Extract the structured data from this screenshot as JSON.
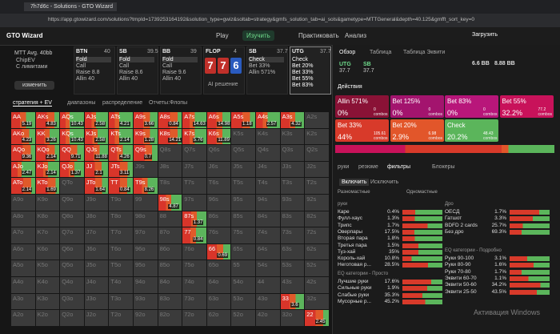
{
  "browser": {
    "tab": "7h7d6c - Solutions - GTO Wizard",
    "url": "https://app.gtowizard.com/solutions?tmpId=1739253164192&solution_type=gwiz&soltab=strategy&gmfs_solution_tab=ai_sols&gametype=MTTGeneral&depth=40.125&gmfft_sort_key=0"
  },
  "header": {
    "logo": "GTO Wizard",
    "nav": [
      "Play",
      "Изучить",
      "Практиковать",
      "Анализ"
    ],
    "upload": "Загрузить"
  },
  "setup": {
    "format": "MTT",
    "stack": "Avg. 40bb",
    "options": [
      "ChipEV",
      "С лимитами"
    ],
    "button": "изменить"
  },
  "actions": [
    {
      "pos": "BTN",
      "stack": "40",
      "items": [
        "Fold",
        "Call",
        "Raise 8.8",
        "Allin 40"
      ]
    },
    {
      "pos": "SB",
      "stack": "39.5",
      "items": [
        "Fold",
        "Call",
        "Raise 8.6",
        "Allin 40"
      ]
    },
    {
      "pos": "BB",
      "stack": "39",
      "items": [
        "Fold",
        "Call",
        "Raise 9.6",
        "Allin 40"
      ]
    },
    {
      "pos": "FLOP",
      "stack": "4",
      "cards": [
        "7",
        "7",
        "6"
      ],
      "note": "AI решение"
    },
    {
      "pos": "SB",
      "stack": "37.7",
      "items": [
        "Check",
        "Bet 33%",
        "Allin 571%"
      ]
    },
    {
      "pos": "UTG",
      "stack": "37.7",
      "items": [
        "Check",
        "Bet 20%",
        "Bet 33%",
        "Bet 55%",
        "Bet 83%"
      ]
    }
  ],
  "tabs": [
    "стратегия + EV",
    "диапазоны",
    "распределение",
    "Отчеты:Флопы"
  ],
  "grid": {
    "rows": [
      [
        "AA",
        "AKs",
        "AQs",
        "AJs",
        "ATs",
        "A9s",
        "A8s",
        "A7s",
        "A6s",
        "A5s",
        "A4s",
        "A3s",
        "A2s"
      ],
      [
        "AKo",
        "KK",
        "KQs",
        "KJs",
        "KTs",
        "K9s",
        "K8s",
        "K7s",
        "K6s",
        "K5s",
        "K4s",
        "K3s",
        "K2s"
      ],
      [
        "AQo",
        "KQo",
        "QQ",
        "QJs",
        "QTs",
        "Q9s",
        "Q8s",
        "Q7s",
        "Q6s",
        "Q5s",
        "Q4s",
        "Q3s",
        "Q2s"
      ],
      [
        "AJo",
        "KJo",
        "QJo",
        "JJ",
        "JTs",
        "J9s",
        "J8s",
        "J7s",
        "J6s",
        "J5s",
        "J4s",
        "J3s",
        "J2s"
      ],
      [
        "ATo",
        "KTo",
        "QTo",
        "JTo",
        "TT",
        "T9s",
        "T8s",
        "T7s",
        "T6s",
        "T5s",
        "T4s",
        "T3s",
        "T2s"
      ],
      [
        "A9o",
        "K9o",
        "Q9o",
        "J9o",
        "T9o",
        "99",
        "98s",
        "97s",
        "96s",
        "95s",
        "94s",
        "93s",
        "92s"
      ],
      [
        "A8o",
        "K8o",
        "Q8o",
        "J8o",
        "T8o",
        "98o",
        "88",
        "87s",
        "86s",
        "85s",
        "84s",
        "83s",
        "82s"
      ],
      [
        "A7o",
        "K7o",
        "Q7o",
        "J7o",
        "T7o",
        "97o",
        "87o",
        "77",
        "76s",
        "75s",
        "74s",
        "73s",
        "72s"
      ],
      [
        "A6o",
        "K6o",
        "Q6o",
        "J6o",
        "T6o",
        "96o",
        "86o",
        "76o",
        "66",
        "65s",
        "64s",
        "63s",
        "62s"
      ],
      [
        "A5o",
        "K5o",
        "Q5o",
        "J5o",
        "T5o",
        "95o",
        "85o",
        "75o",
        "65o",
        "55",
        "54s",
        "53s",
        "52s"
      ],
      [
        "A4o",
        "K4o",
        "Q4o",
        "J4o",
        "T4o",
        "94o",
        "84o",
        "74o",
        "64o",
        "54o",
        "44",
        "43s",
        "42s"
      ],
      [
        "A3o",
        "K3o",
        "Q3o",
        "J3o",
        "T3o",
        "93o",
        "83o",
        "73o",
        "63o",
        "53o",
        "43o",
        "33",
        "32s"
      ],
      [
        "A2o",
        "K2o",
        "Q2o",
        "J2o",
        "T2o",
        "92o",
        "82o",
        "72o",
        "62o",
        "52o",
        "42o",
        "32o",
        "22"
      ]
    ],
    "ev": {
      "AA": 5.19,
      "AKs": 4.83,
      "AQs": 10.43,
      "AJs": 2.58,
      "ATs": 4.21,
      "A9s": 3.66,
      "A8s": 0.84,
      "A7s": 14.63,
      "A6s": 14.98,
      "A5s": 1.18,
      "A4s": 2.57,
      "A3s": 4.32,
      "AKo": 4.23,
      "KK": 3.26,
      "KQs": 10.43,
      "KJs": 2.58,
      "KTs": 2.14,
      "K9s": 1.28,
      "K8s": 14.21,
      "K7s": 5.76,
      "K6s": 11.89,
      "AQo": 9.36,
      "KQo": 2.14,
      "QQ": 9.71,
      "QJs": 11.88,
      "QTs": 4.26,
      "Q9s": 0.7,
      "AJo": 2.47,
      "KJo": 2.14,
      "QJo": 1.37,
      "JJ": 2.1,
      "JTs": 3.11,
      "ATo": 2.14,
      "KTo": 1.69,
      "JTo": 1.64,
      "TT": 0.84,
      "T9s": 8.26,
      "98s": 4.87,
      "87s": 1.37,
      "77": 0.84,
      "66": 0.69,
      "33": 3.6,
      "22": 2.45
    }
  },
  "panel": {
    "tabs": [
      "Обзор",
      "Таблица",
      "Таблица Эквити"
    ],
    "badges": [
      {
        "pos": "UTG",
        "stack": "37.7"
      },
      {
        "pos": "SB",
        "stack": "37.7"
      }
    ],
    "stats": [
      "6.6 BB",
      "8.88 BB"
    ],
    "actions_label": "Действия",
    "cards": [
      {
        "name": "Allin 571%",
        "pct": "0%",
        "combos": "0",
        "unit": "combos",
        "color": "#8a1236"
      },
      {
        "name": "Bet 125%",
        "pct": "0%",
        "combos": "0",
        "unit": "combos",
        "color": "#a3146e"
      },
      {
        "name": "Bet 83%",
        "pct": "0%",
        "combos": "0",
        "unit": "combos",
        "color": "#b8167a"
      },
      {
        "name": "Bet 55%",
        "pct": "32.2%",
        "combos": "77.2",
        "unit": "combos",
        "color": "#c8125a"
      },
      {
        "name": "Bet 33%",
        "pct": "44%",
        "combos": "105.61",
        "unit": "combos",
        "color": "#d83a2a"
      },
      {
        "name": "Bet 20%",
        "pct": "2.9%",
        "combos": "6.98",
        "unit": "combos",
        "color": "#e2562a"
      },
      {
        "name": "Check",
        "pct": "20.2%",
        "combos": "48.43",
        "unit": "combos",
        "color": "#5bb55b"
      }
    ],
    "subtabs": [
      "руки",
      "резюме",
      "фильтры",
      "Блокеры"
    ],
    "include": [
      "Включить",
      "Исключить"
    ],
    "suits": [
      "Разномастные",
      "Одномастные"
    ],
    "lists": [
      {
        "title": "руки",
        "items": [
          [
            "Каре",
            "0.4%"
          ],
          [
            "Фулл-хаус",
            "1.3%"
          ],
          [
            "Трипс",
            "1.7%"
          ],
          [
            "Оверпары",
            "17.5%"
          ],
          [
            "Вторая пара",
            "1.8%"
          ],
          [
            "Третья пара",
            "1.5%"
          ],
          [
            "Туз-хай",
            "35%"
          ],
          [
            "Король-хай",
            "10.8%"
          ],
          [
            "Неготовая р...",
            "28.5%"
          ]
        ]
      },
      {
        "title": "Дро",
        "items": [
          [
            "ОЕСД",
            "1.7%"
          ],
          [
            "Гатшот",
            "3.3%"
          ],
          [
            "BDFD 2 cards",
            "25.7%"
          ],
          [
            "Без дро",
            "69.3%"
          ]
        ]
      },
      {
        "title": "EQ категории - Подробно",
        "items": [
          [
            "Руки 90-100",
            "3.1%"
          ],
          [
            "Руки 80-90",
            "1.6%"
          ],
          [
            "Руки 70-80",
            "1.7%"
          ],
          [
            "Эквити 60-70",
            "1.1%"
          ],
          [
            "Эквити 50-60",
            "34.2%"
          ],
          [
            "Эквити 25-50",
            "43.5%"
          ]
        ]
      },
      {
        "title": "EQ категории - Просто",
        "items": [
          [
            "Лучшие руки",
            "17.6%"
          ],
          [
            "Сильные руки",
            "1.9%"
          ],
          [
            "Слабые руки",
            "35.3%"
          ],
          [
            "Мусорные р...",
            "45.2%"
          ]
        ]
      }
    ]
  },
  "watermark": "Активация Windows"
}
